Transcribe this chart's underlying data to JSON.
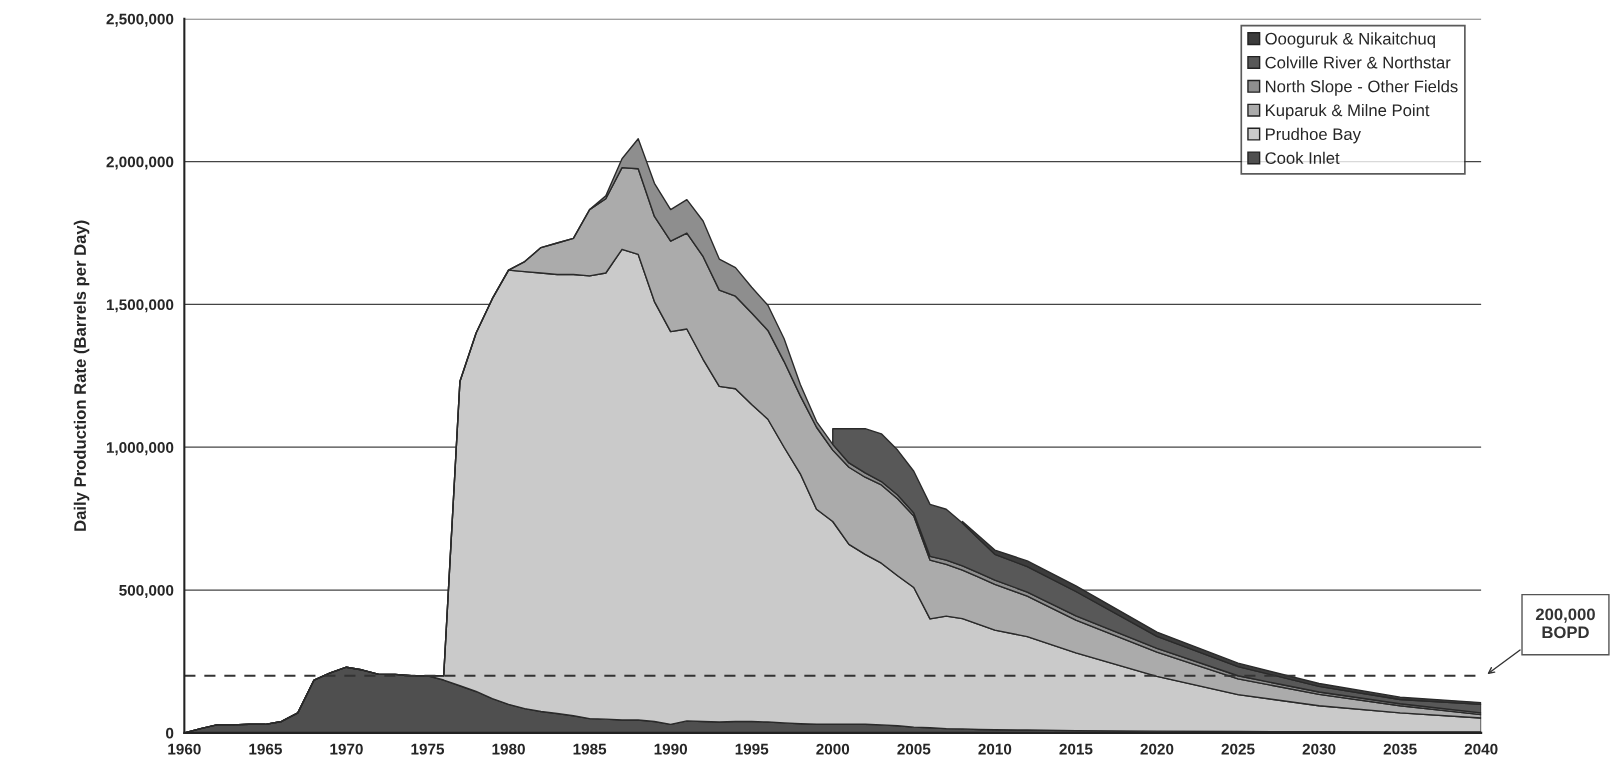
{
  "chart_data": {
    "type": "area",
    "stacked": true,
    "ylabel": "Daily Production Rate (Barrels per Day)",
    "x": [
      1960,
      1961,
      1962,
      1963,
      1964,
      1965,
      1966,
      1967,
      1968,
      1969,
      1970,
      1971,
      1972,
      1973,
      1974,
      1975,
      1976,
      1977,
      1978,
      1979,
      1980,
      1981,
      1982,
      1983,
      1984,
      1985,
      1986,
      1987,
      1988,
      1989,
      1990,
      1991,
      1992,
      1993,
      1994,
      1995,
      1996,
      1997,
      1998,
      1999,
      2000,
      2001,
      2002,
      2003,
      2004,
      2005,
      2006,
      2007,
      2008,
      2009,
      2010,
      2012,
      2015,
      2020,
      2025,
      2030,
      2035,
      2040
    ],
    "series": [
      {
        "name": "Cook Inlet",
        "color": "#4f4f4f",
        "values": [
          0,
          15000,
          28000,
          28000,
          30000,
          30000,
          40000,
          70000,
          185000,
          210000,
          230000,
          220000,
          205000,
          205000,
          200000,
          200000,
          185000,
          165000,
          145000,
          120000,
          100000,
          85000,
          75000,
          68000,
          60000,
          50000,
          48000,
          45000,
          45000,
          40000,
          30000,
          42000,
          40000,
          38000,
          40000,
          40000,
          38000,
          35000,
          32000,
          30000,
          30000,
          30000,
          30000,
          28000,
          25000,
          20000,
          18000,
          15000,
          14000,
          12000,
          11000,
          10000,
          8000,
          6000,
          5000,
          4000,
          3000,
          3000
        ]
      },
      {
        "name": "Prudhoe Bay",
        "color": "#cacaca",
        "values": [
          0,
          0,
          0,
          0,
          0,
          0,
          0,
          0,
          0,
          0,
          0,
          0,
          0,
          0,
          0,
          0,
          15000,
          1065000,
          1255000,
          1400000,
          1520000,
          1530000,
          1535000,
          1537000,
          1545000,
          1550000,
          1562000,
          1648000,
          1630000,
          1470000,
          1375000,
          1372000,
          1268000,
          1175000,
          1165000,
          1110000,
          1060000,
          965000,
          875000,
          753000,
          710000,
          630000,
          595000,
          566000,
          525000,
          489000,
          381000,
          394000,
          386000,
          368000,
          349000,
          327000,
          272000,
          192000,
          129000,
          91000,
          67000,
          49000
        ]
      },
      {
        "name": "Kuparuk & Milne Point",
        "color": "#ababab",
        "values": [
          0,
          0,
          0,
          0,
          0,
          0,
          0,
          0,
          0,
          0,
          0,
          0,
          0,
          0,
          0,
          0,
          0,
          0,
          0,
          0,
          0,
          35000,
          89000,
          110000,
          126000,
          232000,
          260000,
          286000,
          300000,
          298000,
          317000,
          336000,
          360000,
          337000,
          324000,
          320000,
          311000,
          300000,
          273000,
          287000,
          250000,
          270000,
          270000,
          274000,
          270000,
          250000,
          206000,
          181000,
          170000,
          165000,
          160000,
          142000,
          115000,
          85000,
          55000,
          40000,
          25000,
          12000
        ]
      },
      {
        "name": "North Slope - Other Fields",
        "color": "#8e8e8e",
        "values": [
          0,
          0,
          0,
          0,
          0,
          0,
          0,
          0,
          0,
          0,
          0,
          0,
          0,
          0,
          0,
          0,
          0,
          0,
          0,
          0,
          0,
          0,
          0,
          0,
          0,
          0,
          10000,
          31000,
          105000,
          116000,
          110000,
          117000,
          124000,
          109000,
          100000,
          90000,
          88000,
          80000,
          40000,
          20000,
          20000,
          15000,
          15000,
          12000,
          13000,
          11000,
          13000,
          15000,
          15000,
          15000,
          15000,
          14000,
          15000,
          13000,
          11000,
          8000,
          7000,
          6000
        ]
      },
      {
        "name": "Colville River & Northstar",
        "color": "#585858",
        "values": [
          null,
          null,
          null,
          null,
          null,
          null,
          null,
          null,
          null,
          null,
          null,
          null,
          null,
          null,
          null,
          null,
          null,
          null,
          null,
          null,
          null,
          null,
          null,
          null,
          null,
          null,
          null,
          null,
          null,
          null,
          null,
          null,
          null,
          null,
          null,
          null,
          null,
          null,
          null,
          null,
          55000,
          120000,
          155000,
          167000,
          157000,
          146000,
          182000,
          178000,
          150000,
          120000,
          90000,
          89000,
          85000,
          42000,
          32000,
          20000,
          15000,
          30000
        ]
      },
      {
        "name": "Oooguruk & Nikaitchuq",
        "color": "#3c3c3c",
        "values": [
          null,
          null,
          null,
          null,
          null,
          null,
          null,
          null,
          null,
          null,
          null,
          null,
          null,
          null,
          null,
          null,
          null,
          null,
          null,
          null,
          null,
          null,
          null,
          null,
          null,
          null,
          null,
          null,
          null,
          null,
          null,
          null,
          null,
          null,
          null,
          null,
          null,
          null,
          null,
          null,
          null,
          null,
          null,
          null,
          null,
          null,
          null,
          null,
          5000,
          10000,
          15000,
          20000,
          20000,
          15000,
          12000,
          10000,
          8000,
          6000
        ]
      }
    ],
    "xlim": [
      1960,
      2040
    ],
    "xticks": [
      1960,
      1965,
      1970,
      1975,
      1980,
      1985,
      1990,
      1995,
      2000,
      2005,
      2010,
      2015,
      2020,
      2025,
      2030,
      2035,
      2040
    ],
    "ylim": [
      0,
      2500000
    ],
    "yticks": [
      {
        "value": 0,
        "label": "0"
      },
      {
        "value": 500000,
        "label": "500,000"
      },
      {
        "value": 1000000,
        "label": "1,000,000"
      },
      {
        "value": 1500000,
        "label": "1,500,000"
      },
      {
        "value": 2000000,
        "label": "2,000,000"
      },
      {
        "value": 2500000,
        "label": "2,500,000"
      }
    ],
    "grid": "y",
    "legend": "top right",
    "ref_lines": [
      {
        "axis": "y",
        "value": 200000,
        "label": "200,000\nBOPD",
        "color": "#333333",
        "line_style": "dashed"
      }
    ]
  }
}
